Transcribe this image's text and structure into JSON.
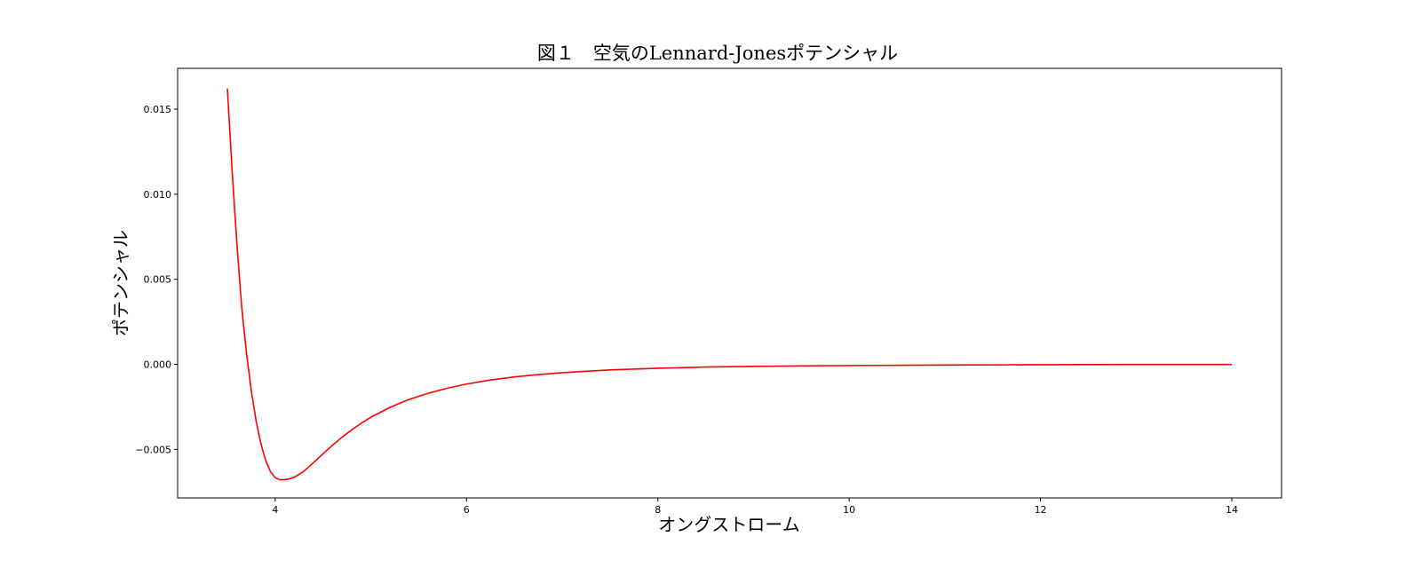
{
  "chart_data": {
    "type": "line",
    "title": "図１　空気のLennard-Jonesポテンシャル",
    "xlabel": "オングストローム",
    "ylabel": "ポテンシャル",
    "xlim": [
      2.98,
      14.52
    ],
    "ylim": [
      -0.00785,
      0.0174
    ],
    "xticks": [
      4,
      6,
      8,
      10,
      12,
      14
    ],
    "xtick_labels": [
      "4",
      "6",
      "8",
      "10",
      "12",
      "14"
    ],
    "yticks": [
      -0.005,
      0.0,
      0.005,
      0.01,
      0.015
    ],
    "ytick_labels": [
      "−0.005",
      "0.000",
      "0.005",
      "0.010",
      "0.015"
    ],
    "grid": false,
    "series": [
      {
        "color": "#ff0000",
        "x": [
          3.5,
          3.55,
          3.6,
          3.65,
          3.7,
          3.75,
          3.8,
          3.85,
          3.9,
          3.95,
          4.0,
          4.05,
          4.1,
          4.15,
          4.2,
          4.3,
          4.4,
          4.5,
          4.6,
          4.7,
          4.8,
          4.9,
          5.0,
          5.2,
          5.4,
          5.6,
          5.8,
          6.0,
          6.25,
          6.5,
          6.75,
          7.0,
          7.5,
          8.0,
          8.5,
          9.0,
          9.5,
          10.0,
          11.0,
          12.0,
          13.0,
          14.0
        ],
        "y": [
          0.01622,
          0.01134,
          0.00706,
          0.00334,
          0.00067,
          -0.00154,
          -0.00331,
          -0.00466,
          -0.00564,
          -0.0063,
          -0.00666,
          -0.00679,
          -0.00677,
          -0.00673,
          -0.00664,
          -0.00628,
          -0.00578,
          -0.00526,
          -0.00475,
          -0.00428,
          -0.00385,
          -0.00346,
          -0.00311,
          -0.00253,
          -0.00206,
          -0.0017,
          -0.0014,
          -0.00116,
          -0.00092,
          -0.00074,
          -0.0006,
          -0.00049,
          -0.00033,
          -0.00023,
          -0.00016,
          -0.00012,
          -9e-05,
          -7e-05,
          -4e-05,
          -2e-05,
          -1e-05,
          -1e-05
        ]
      }
    ]
  }
}
